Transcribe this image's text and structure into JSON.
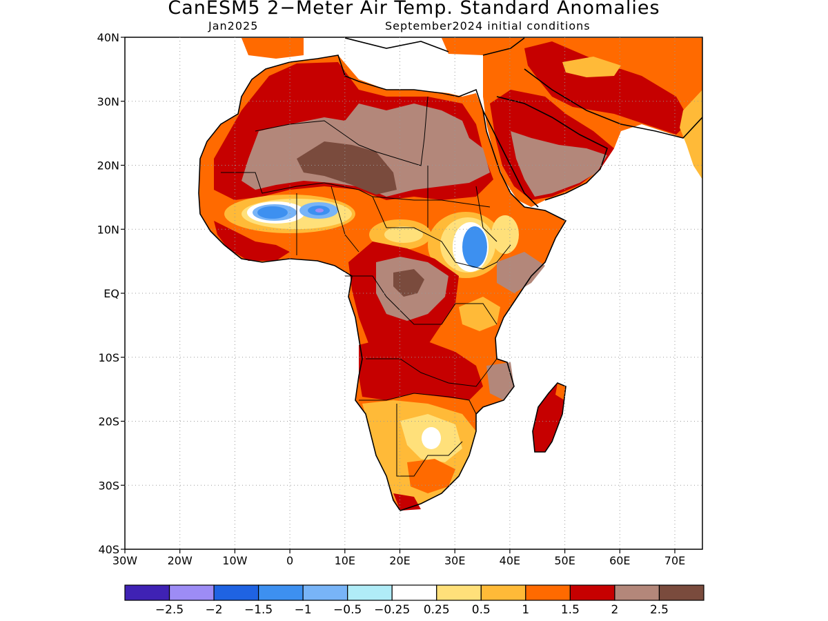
{
  "title": "CanESM5 2−Meter Air Temp. Standard Anomalies",
  "subtitle_left": "Jan2025",
  "subtitle_right": "September2024 initial conditions",
  "map": {
    "lat_labels": [
      "40N",
      "30N",
      "20N",
      "10N",
      "EQ",
      "10S",
      "20S",
      "30S",
      "40S"
    ],
    "lon_labels": [
      "30W",
      "20W",
      "10W",
      "0",
      "10E",
      "20E",
      "30E",
      "40E",
      "50E",
      "60E",
      "70E"
    ],
    "grid": true,
    "extent": {
      "lon": [
        -30,
        75
      ],
      "lat": [
        -40,
        40
      ]
    }
  },
  "legend": {
    "colors": [
      "#3f22b4",
      "#9d8cf5",
      "#1f63e2",
      "#3d90f0",
      "#78b4f7",
      "#b0ecf7",
      "#ffffff",
      "#ffe07a",
      "#ffba38",
      "#ff6a00",
      "#c60000",
      "#b3877a",
      "#7a4b3d"
    ],
    "labels": [
      "−2.5",
      "−2",
      "−1.5",
      "−1",
      "−0.5",
      "−0.25",
      "0.25",
      "0.5",
      "1",
      "1.5",
      "2",
      "2.5"
    ]
  },
  "colors": {
    "white_anom": "#ffffff",
    "orange": "#ff6a00",
    "darkred": "#c60000",
    "brown": "#b3877a",
    "darkbrown": "#7a4b3d"
  }
}
